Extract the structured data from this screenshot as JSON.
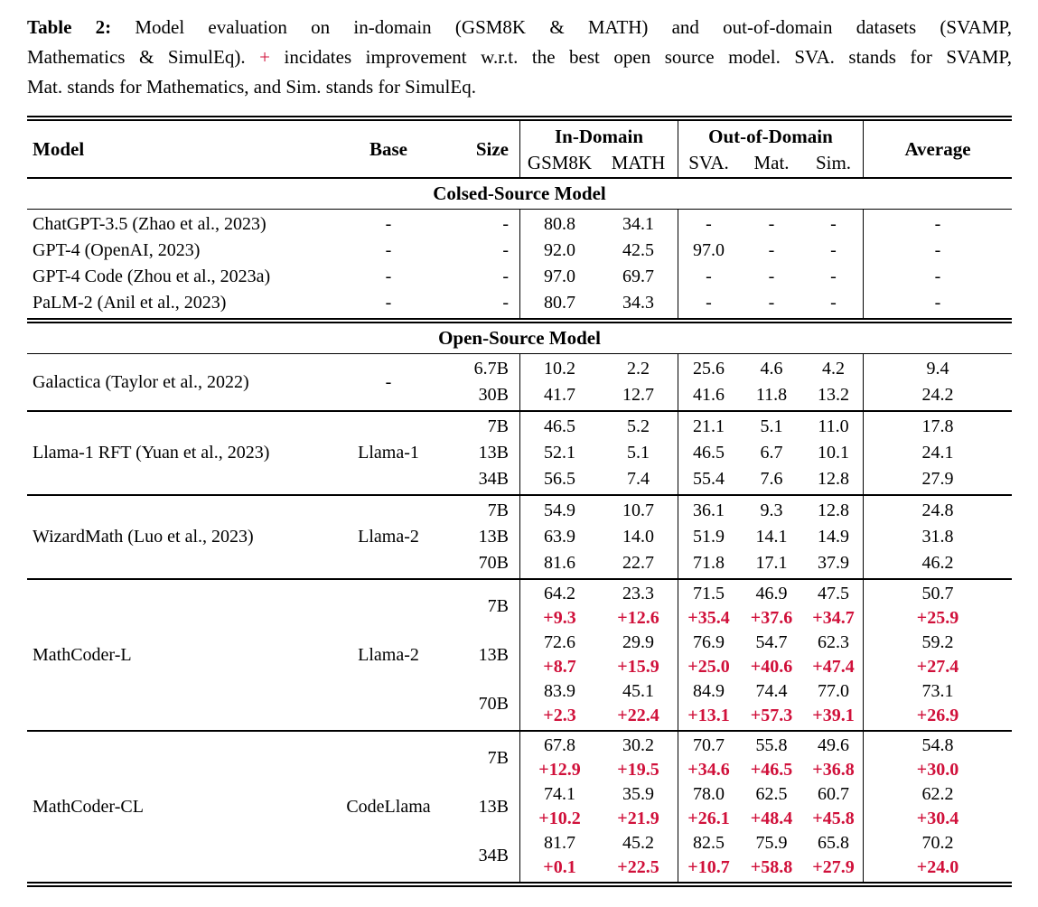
{
  "colors": {
    "accent_red": "#d0103a",
    "text": "#000000",
    "background": "#ffffff"
  },
  "caption": {
    "label": "Table 2:",
    "line1": "Model evaluation on in-domain (GSM8K & MATH) and out-of-domain datasets (SVAMP,",
    "line2_before": "Mathematics & SimulEq).",
    "line2_plus": "+",
    "line2_after": "incidates improvement w.r.t. the best open source model. SVA. stands for SVAMP,",
    "line3": "Mat. stands for Mathematics, and Sim. stands for SimulEq."
  },
  "table": {
    "headers": {
      "model": "Model",
      "base": "Base",
      "size": "Size",
      "in_domain": "In-Domain",
      "out_of_domain": "Out-of-Domain",
      "average": "Average",
      "in_domain_cols": [
        "GSM8K",
        "MATH"
      ],
      "out_of_domain_cols": [
        "SVA.",
        "Mat.",
        "Sim."
      ]
    },
    "sections": [
      {
        "title": "Colsed-Source Model",
        "blocks": [
          {
            "groups": [
              {
                "model": "ChatGPT-3.5 (Zhao et al., 2023)",
                "base": "-",
                "sizes": [
                  {
                    "label": "-",
                    "lines": [
                      {
                        "delta": false,
                        "values": [
                          "80.8",
                          "34.1",
                          "-",
                          "-",
                          "-",
                          "-"
                        ]
                      }
                    ]
                  }
                ]
              },
              {
                "model": "GPT-4 (OpenAI, 2023)",
                "base": "-",
                "sizes": [
                  {
                    "label": "-",
                    "lines": [
                      {
                        "delta": false,
                        "values": [
                          "92.0",
                          "42.5",
                          "97.0",
                          "-",
                          "-",
                          "-"
                        ]
                      }
                    ]
                  }
                ]
              },
              {
                "model": "GPT-4 Code (Zhou et al., 2023a)",
                "base": "-",
                "sizes": [
                  {
                    "label": "-",
                    "lines": [
                      {
                        "delta": false,
                        "values": [
                          "97.0",
                          "69.7",
                          "-",
                          "-",
                          "-",
                          "-"
                        ]
                      }
                    ]
                  }
                ]
              },
              {
                "model": "PaLM-2 (Anil et al., 2023)",
                "base": "-",
                "sizes": [
                  {
                    "label": "-",
                    "lines": [
                      {
                        "delta": false,
                        "values": [
                          "80.7",
                          "34.3",
                          "-",
                          "-",
                          "-",
                          "-"
                        ]
                      }
                    ]
                  }
                ]
              }
            ]
          }
        ]
      },
      {
        "title": "Open-Source Model",
        "blocks": [
          {
            "groups": [
              {
                "model": "Galactica (Taylor et al., 2022)",
                "base": "-",
                "sizes": [
                  {
                    "label": "6.7B",
                    "lines": [
                      {
                        "delta": false,
                        "values": [
                          "10.2",
                          "2.2",
                          "25.6",
                          "4.6",
                          "4.2",
                          "9.4"
                        ]
                      }
                    ]
                  },
                  {
                    "label": "30B",
                    "lines": [
                      {
                        "delta": false,
                        "values": [
                          "41.7",
                          "12.7",
                          "41.6",
                          "11.8",
                          "13.2",
                          "24.2"
                        ]
                      }
                    ]
                  }
                ]
              }
            ]
          },
          {
            "groups": [
              {
                "model": "Llama-1 RFT (Yuan et al., 2023)",
                "base": "Llama-1",
                "sizes": [
                  {
                    "label": "7B",
                    "lines": [
                      {
                        "delta": false,
                        "values": [
                          "46.5",
                          "5.2",
                          "21.1",
                          "5.1",
                          "11.0",
                          "17.8"
                        ]
                      }
                    ]
                  },
                  {
                    "label": "13B",
                    "lines": [
                      {
                        "delta": false,
                        "values": [
                          "52.1",
                          "5.1",
                          "46.5",
                          "6.7",
                          "10.1",
                          "24.1"
                        ]
                      }
                    ]
                  },
                  {
                    "label": "34B",
                    "lines": [
                      {
                        "delta": false,
                        "values": [
                          "56.5",
                          "7.4",
                          "55.4",
                          "7.6",
                          "12.8",
                          "27.9"
                        ]
                      }
                    ]
                  }
                ]
              }
            ]
          },
          {
            "groups": [
              {
                "model": "WizardMath (Luo et al., 2023)",
                "base": "Llama-2",
                "sizes": [
                  {
                    "label": "7B",
                    "lines": [
                      {
                        "delta": false,
                        "values": [
                          "54.9",
                          "10.7",
                          "36.1",
                          "9.3",
                          "12.8",
                          "24.8"
                        ]
                      }
                    ]
                  },
                  {
                    "label": "13B",
                    "lines": [
                      {
                        "delta": false,
                        "values": [
                          "63.9",
                          "14.0",
                          "51.9",
                          "14.1",
                          "14.9",
                          "31.8"
                        ]
                      }
                    ]
                  },
                  {
                    "label": "70B",
                    "lines": [
                      {
                        "delta": false,
                        "values": [
                          "81.6",
                          "22.7",
                          "71.8",
                          "17.1",
                          "37.9",
                          "46.2"
                        ]
                      }
                    ]
                  }
                ]
              }
            ]
          },
          {
            "groups": [
              {
                "model": "MathCoder-L",
                "base": "Llama-2",
                "sizes": [
                  {
                    "label": "7B",
                    "lines": [
                      {
                        "delta": false,
                        "values": [
                          "64.2",
                          "23.3",
                          "71.5",
                          "46.9",
                          "47.5",
                          "50.7"
                        ]
                      },
                      {
                        "delta": true,
                        "values": [
                          "+9.3",
                          "+12.6",
                          "+35.4",
                          "+37.6",
                          "+34.7",
                          "+25.9"
                        ]
                      }
                    ]
                  },
                  {
                    "label": "13B",
                    "lines": [
                      {
                        "delta": false,
                        "values": [
                          "72.6",
                          "29.9",
                          "76.9",
                          "54.7",
                          "62.3",
                          "59.2"
                        ]
                      },
                      {
                        "delta": true,
                        "values": [
                          "+8.7",
                          "+15.9",
                          "+25.0",
                          "+40.6",
                          "+47.4",
                          "+27.4"
                        ]
                      }
                    ]
                  },
                  {
                    "label": "70B",
                    "lines": [
                      {
                        "delta": false,
                        "values": [
                          "83.9",
                          "45.1",
                          "84.9",
                          "74.4",
                          "77.0",
                          "73.1"
                        ]
                      },
                      {
                        "delta": true,
                        "values": [
                          "+2.3",
                          "+22.4",
                          "+13.1",
                          "+57.3",
                          "+39.1",
                          "+26.9"
                        ]
                      }
                    ]
                  }
                ]
              }
            ]
          },
          {
            "groups": [
              {
                "model": "MathCoder-CL",
                "base": "CodeLlama",
                "sizes": [
                  {
                    "label": "7B",
                    "lines": [
                      {
                        "delta": false,
                        "values": [
                          "67.8",
                          "30.2",
                          "70.7",
                          "55.8",
                          "49.6",
                          "54.8"
                        ]
                      },
                      {
                        "delta": true,
                        "values": [
                          "+12.9",
                          "+19.5",
                          "+34.6",
                          "+46.5",
                          "+36.8",
                          "+30.0"
                        ]
                      }
                    ]
                  },
                  {
                    "label": "13B",
                    "lines": [
                      {
                        "delta": false,
                        "values": [
                          "74.1",
                          "35.9",
                          "78.0",
                          "62.5",
                          "60.7",
                          "62.2"
                        ]
                      },
                      {
                        "delta": true,
                        "values": [
                          "+10.2",
                          "+21.9",
                          "+26.1",
                          "+48.4",
                          "+45.8",
                          "+30.4"
                        ]
                      }
                    ]
                  },
                  {
                    "label": "34B",
                    "lines": [
                      {
                        "delta": false,
                        "values": [
                          "81.7",
                          "45.2",
                          "82.5",
                          "75.9",
                          "65.8",
                          "70.2"
                        ]
                      },
                      {
                        "delta": true,
                        "values": [
                          "+0.1",
                          "+22.5",
                          "+10.7",
                          "+58.8",
                          "+27.9",
                          "+24.0"
                        ]
                      }
                    ]
                  }
                ]
              }
            ]
          }
        ]
      }
    ]
  }
}
